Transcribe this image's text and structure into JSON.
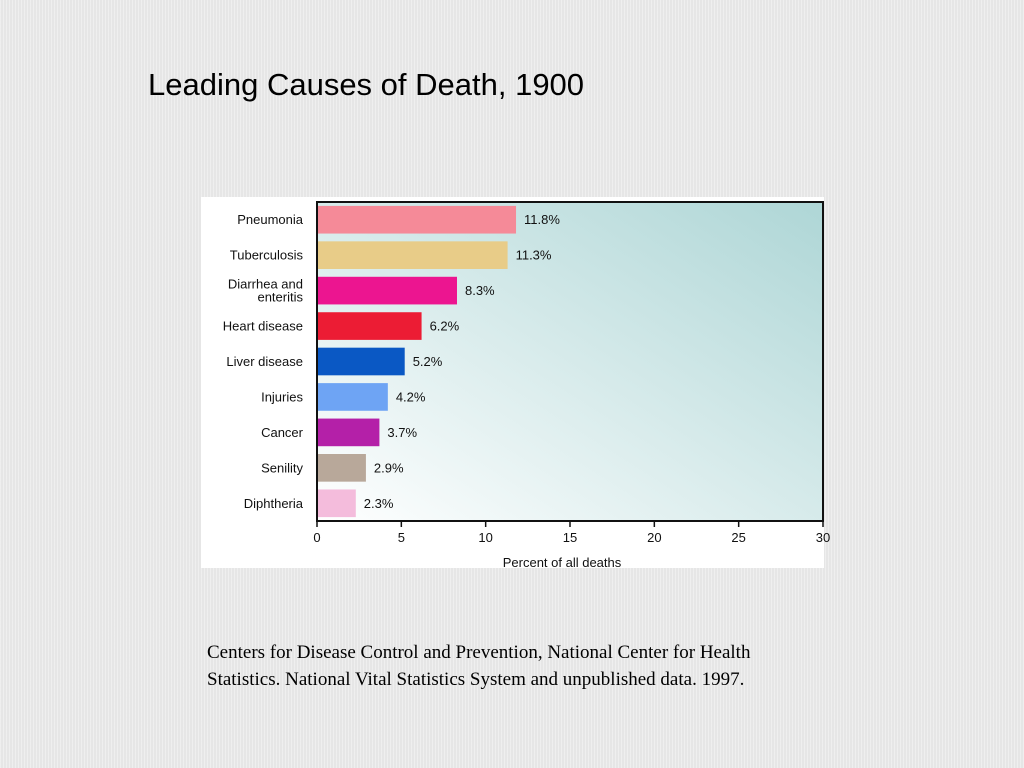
{
  "slide": {
    "title": "Leading Causes of Death, 1900",
    "source_note": "Centers for Disease Control and Prevention, National Center for Health Statistics. National Vital Statistics System and unpublished data. 1997."
  },
  "chart_data": {
    "type": "bar",
    "orientation": "horizontal",
    "title": "",
    "xlabel": "Percent of all deaths",
    "ylabel": "",
    "xlim": [
      0,
      30
    ],
    "xticks": [
      0,
      5,
      10,
      15,
      20,
      25,
      30
    ],
    "grid": false,
    "categories": [
      [
        "Pneumonia"
      ],
      [
        "Tuberculosis"
      ],
      [
        "Diarrhea and",
        "enteritis"
      ],
      [
        "Heart disease"
      ],
      [
        "Liver disease"
      ],
      [
        "Injuries"
      ],
      [
        "Cancer"
      ],
      [
        "Senility"
      ],
      [
        "Diphtheria"
      ]
    ],
    "values": [
      11.8,
      11.3,
      8.3,
      6.2,
      5.2,
      4.2,
      3.7,
      2.9,
      2.3
    ],
    "value_labels": [
      "11.8%",
      "11.3%",
      "8.3%",
      "6.2%",
      "5.2%",
      "4.2%",
      "3.7%",
      "2.9%",
      "2.3%"
    ],
    "colors": [
      "#f58a98",
      "#e8cc88",
      "#ec1590",
      "#ec1c34",
      "#0a58c4",
      "#6ea4f4",
      "#b420a8",
      "#b8a89a",
      "#f4bcdc"
    ],
    "plot_background": [
      "#ffffff",
      "#aed6d6"
    ]
  }
}
